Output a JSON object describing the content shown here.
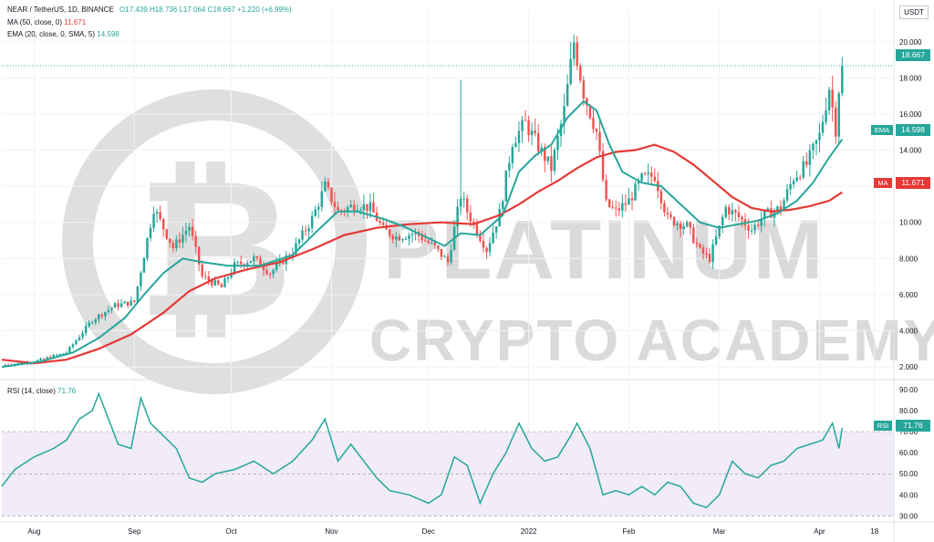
{
  "header": {
    "symbol": "NEAR / TetherUS, 1D, BINANCE",
    "ohlc": {
      "o": "O17.439",
      "h": "H18.736",
      "l": "L17.064",
      "c": "C18.667",
      "chg": "+1.220 (+6.99%)"
    },
    "ma_label": "MA (50, close, 0)",
    "ma_value": "11.671",
    "ema_label": "EMA (20, close, 0, SMA, 5)",
    "ema_value": "14.598",
    "rsi_label": "RSI (14, close)",
    "rsi_value": "71.76"
  },
  "currency": "USDT",
  "tags": {
    "last_price": "18.667",
    "ema_tag": "EMA",
    "ema_value": "14.598",
    "ma_tag": "MA",
    "ma_value": "11.671",
    "rsi_tag": "RSI",
    "rsi_value": "71.76"
  },
  "watermark": {
    "line1": "PLATINUM",
    "line2": "CRYPTO ACADEMY"
  },
  "colors": {
    "up": "#26a69a",
    "down": "#ef5350",
    "ema": "#26a69a",
    "ma": "#e53935",
    "rsi": "#26a69a",
    "rsi_band": "#ede7f6"
  },
  "chart_data": {
    "type": "candlestick",
    "price_ylim": [
      1.5,
      21.2
    ],
    "price_ticks": [
      "2.000",
      "4.000",
      "6.000",
      "8.000",
      "10.000",
      "12.000",
      "14.000",
      "16.000",
      "18.000",
      "20.000"
    ],
    "rsi_ylim": [
      28,
      93
    ],
    "rsi_ticks": [
      "30.00",
      "40.00",
      "50.00",
      "60.00",
      "70.00",
      "80.00",
      "90.00"
    ],
    "rsi_levels": [
      70,
      30
    ],
    "x_labels": [
      {
        "label": "Aug",
        "day": 10
      },
      {
        "label": "Sep",
        "day": 41
      },
      {
        "label": "Oct",
        "day": 71
      },
      {
        "label": "Nov",
        "day": 102
      },
      {
        "label": "Dec",
        "day": 132
      },
      {
        "label": "2022",
        "day": 163
      },
      {
        "label": "Feb",
        "day": 194
      },
      {
        "label": "Mar",
        "day": 222
      },
      {
        "label": "Apr",
        "day": 253
      },
      {
        "label": "18",
        "day": 270
      }
    ],
    "x_range": [
      0,
      276
    ],
    "close_path": [
      [
        0,
        2.1
      ],
      [
        10,
        2.3
      ],
      [
        20,
        2.8
      ],
      [
        28,
        4.6
      ],
      [
        35,
        5.4
      ],
      [
        41,
        5.6
      ],
      [
        47,
        10.8
      ],
      [
        53,
        8.6
      ],
      [
        58,
        9.8
      ],
      [
        62,
        7.0
      ],
      [
        68,
        6.4
      ],
      [
        72,
        7.6
      ],
      [
        78,
        8.0
      ],
      [
        83,
        7.2
      ],
      [
        90,
        8.4
      ],
      [
        96,
        10.2
      ],
      [
        100,
        12.0
      ],
      [
        104,
        10.6
      ],
      [
        110,
        11.0
      ],
      [
        114,
        10.8
      ],
      [
        118,
        9.6
      ],
      [
        122,
        9.2
      ],
      [
        128,
        9.4
      ],
      [
        134,
        8.6
      ],
      [
        138,
        7.8
      ],
      [
        142,
        11.5
      ],
      [
        144,
        10.6
      ],
      [
        150,
        8.5
      ],
      [
        154,
        10.5
      ],
      [
        158,
        14.5
      ],
      [
        162,
        15.5
      ],
      [
        166,
        14.2
      ],
      [
        170,
        13.0
      ],
      [
        174,
        16.2
      ],
      [
        177,
        20.0
      ],
      [
        180,
        17.2
      ],
      [
        184,
        15.0
      ],
      [
        187,
        11.0
      ],
      [
        190,
        10.6
      ],
      [
        194,
        11.2
      ],
      [
        198,
        12.4
      ],
      [
        202,
        12.6
      ],
      [
        206,
        10.2
      ],
      [
        212,
        9.8
      ],
      [
        216,
        8.4
      ],
      [
        219,
        8.0
      ],
      [
        224,
        10.8
      ],
      [
        228,
        10.3
      ],
      [
        232,
        9.6
      ],
      [
        236,
        10.4
      ],
      [
        241,
        10.8
      ],
      [
        245,
        12.5
      ],
      [
        249,
        13.2
      ],
      [
        253,
        14.8
      ],
      [
        256,
        17.5
      ],
      [
        258,
        15.2
      ],
      [
        259,
        17.4
      ],
      [
        260,
        18.67
      ]
    ],
    "ema_path": [
      [
        0,
        2.0
      ],
      [
        12,
        2.3
      ],
      [
        22,
        2.8
      ],
      [
        30,
        3.6
      ],
      [
        38,
        4.7
      ],
      [
        44,
        6.0
      ],
      [
        50,
        7.2
      ],
      [
        56,
        8.0
      ],
      [
        62,
        7.8
      ],
      [
        70,
        7.6
      ],
      [
        80,
        7.6
      ],
      [
        90,
        8.2
      ],
      [
        98,
        9.6
      ],
      [
        104,
        10.6
      ],
      [
        110,
        10.6
      ],
      [
        118,
        10.2
      ],
      [
        124,
        9.8
      ],
      [
        130,
        9.3
      ],
      [
        137,
        8.7
      ],
      [
        142,
        9.4
      ],
      [
        148,
        9.3
      ],
      [
        155,
        10.4
      ],
      [
        160,
        12.8
      ],
      [
        165,
        13.7
      ],
      [
        170,
        14.3
      ],
      [
        175,
        15.8
      ],
      [
        180,
        16.7
      ],
      [
        184,
        16.2
      ],
      [
        188,
        14.3
      ],
      [
        192,
        12.8
      ],
      [
        198,
        12.2
      ],
      [
        204,
        12.0
      ],
      [
        210,
        11.0
      ],
      [
        216,
        10.0
      ],
      [
        222,
        9.7
      ],
      [
        228,
        9.9
      ],
      [
        234,
        10.1
      ],
      [
        240,
        10.5
      ],
      [
        246,
        11.2
      ],
      [
        251,
        12.2
      ],
      [
        256,
        13.6
      ],
      [
        260,
        14.6
      ]
    ],
    "ma_path": [
      [
        0,
        2.4
      ],
      [
        10,
        2.2
      ],
      [
        20,
        2.4
      ],
      [
        30,
        3.0
      ],
      [
        40,
        3.8
      ],
      [
        50,
        5.0
      ],
      [
        58,
        6.2
      ],
      [
        66,
        6.9
      ],
      [
        76,
        7.4
      ],
      [
        86,
        7.8
      ],
      [
        96,
        8.5
      ],
      [
        106,
        9.3
      ],
      [
        116,
        9.7
      ],
      [
        126,
        9.9
      ],
      [
        136,
        10.0
      ],
      [
        146,
        9.9
      ],
      [
        154,
        10.4
      ],
      [
        160,
        11.0
      ],
      [
        166,
        11.7
      ],
      [
        172,
        12.3
      ],
      [
        178,
        13.0
      ],
      [
        184,
        13.6
      ],
      [
        190,
        13.9
      ],
      [
        196,
        14.0
      ],
      [
        202,
        14.3
      ],
      [
        208,
        13.9
      ],
      [
        214,
        13.2
      ],
      [
        220,
        12.3
      ],
      [
        226,
        11.4
      ],
      [
        232,
        10.8
      ],
      [
        238,
        10.6
      ],
      [
        244,
        10.7
      ],
      [
        250,
        10.9
      ],
      [
        256,
        11.2
      ],
      [
        260,
        11.67
      ]
    ],
    "rsi_path": [
      [
        0,
        44
      ],
      [
        4,
        52
      ],
      [
        10,
        58
      ],
      [
        16,
        62
      ],
      [
        20,
        66
      ],
      [
        24,
        76
      ],
      [
        28,
        80
      ],
      [
        30,
        88
      ],
      [
        33,
        76
      ],
      [
        36,
        64
      ],
      [
        40,
        62
      ],
      [
        43,
        86
      ],
      [
        46,
        74
      ],
      [
        50,
        68
      ],
      [
        54,
        62
      ],
      [
        58,
        48
      ],
      [
        62,
        46
      ],
      [
        66,
        50
      ],
      [
        72,
        52
      ],
      [
        78,
        56
      ],
      [
        84,
        50
      ],
      [
        90,
        56
      ],
      [
        96,
        66
      ],
      [
        100,
        76
      ],
      [
        104,
        56
      ],
      [
        108,
        64
      ],
      [
        112,
        56
      ],
      [
        116,
        48
      ],
      [
        120,
        42
      ],
      [
        126,
        40
      ],
      [
        132,
        36
      ],
      [
        136,
        40
      ],
      [
        140,
        58
      ],
      [
        144,
        54
      ],
      [
        148,
        36
      ],
      [
        152,
        50
      ],
      [
        156,
        60
      ],
      [
        160,
        74
      ],
      [
        164,
        62
      ],
      [
        168,
        56
      ],
      [
        172,
        58
      ],
      [
        176,
        68
      ],
      [
        178,
        74
      ],
      [
        182,
        62
      ],
      [
        186,
        40
      ],
      [
        190,
        42
      ],
      [
        194,
        40
      ],
      [
        198,
        44
      ],
      [
        202,
        40
      ],
      [
        206,
        46
      ],
      [
        210,
        44
      ],
      [
        214,
        36
      ],
      [
        218,
        34
      ],
      [
        222,
        40
      ],
      [
        226,
        56
      ],
      [
        230,
        50
      ],
      [
        234,
        48
      ],
      [
        238,
        54
      ],
      [
        242,
        56
      ],
      [
        246,
        62
      ],
      [
        250,
        64
      ],
      [
        254,
        66
      ],
      [
        257,
        74
      ],
      [
        259,
        62
      ],
      [
        260,
        71.76
      ]
    ]
  }
}
